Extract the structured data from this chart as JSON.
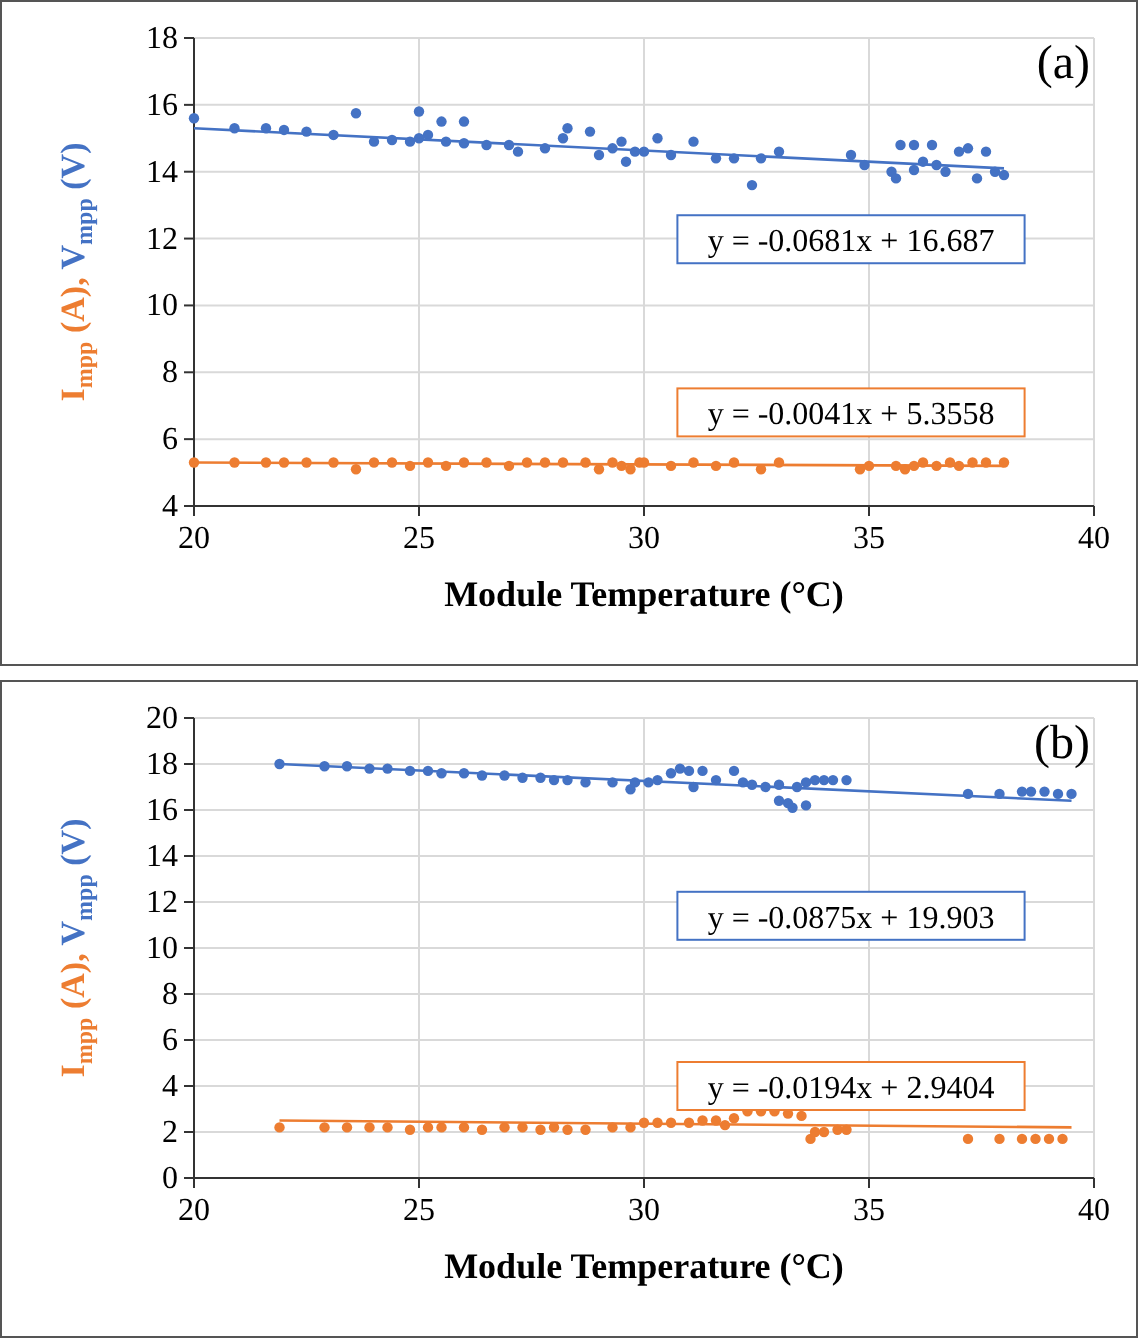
{
  "chart_data": [
    {
      "type": "scatter",
      "title": "(a)",
      "xlabel": "Module Temperature  (°C)",
      "ylabel": "I$_{mpp}$ (A), V$_{mpp}$ (V)",
      "xlim": [
        20,
        40
      ],
      "ylim": [
        4,
        18
      ],
      "xticks": [
        20,
        25,
        30,
        35,
        40
      ],
      "yticks": [
        4,
        6,
        8,
        10,
        12,
        14,
        16,
        18
      ],
      "grid": true,
      "marker": "circle",
      "annotations": [
        "y = -0.0681x + 16.687",
        "y = -0.0041x + 5.3558"
      ],
      "series": [
        {
          "type": "scatter",
          "color": "#4472c4",
          "x": [
            20,
            20.9,
            21.6,
            22,
            22.5,
            23.1,
            23.6,
            24,
            24.4,
            24.8,
            25,
            25,
            25.2,
            25.5,
            25.6,
            26,
            26,
            26.5,
            27,
            27.2,
            27.8,
            28.2,
            28.3,
            28.8,
            29,
            29.3,
            29.5,
            29.6,
            29.8,
            30,
            30.3,
            30.6,
            31.1,
            31.6,
            32,
            32.4,
            32.6,
            33,
            34.6,
            34.9,
            35.5,
            35.7,
            35.6,
            36,
            36.2,
            36.4,
            36.7,
            37,
            37.2,
            37.4,
            37.8,
            38,
            36,
            36.5,
            37.6
          ],
          "values": [
            15.6,
            15.3,
            15.3,
            15.25,
            15.2,
            15.1,
            15.75,
            14.9,
            14.95,
            14.9,
            15.8,
            15,
            15.1,
            15.5,
            14.9,
            15.5,
            14.85,
            14.8,
            14.8,
            14.6,
            14.7,
            15,
            15.3,
            15.2,
            14.5,
            14.7,
            14.9,
            14.3,
            14.6,
            14.6,
            15,
            14.5,
            14.9,
            14.4,
            14.4,
            13.6,
            14.4,
            14.6,
            14.5,
            14.2,
            14,
            14.8,
            13.8,
            14.8,
            14.3,
            14.8,
            14,
            14.6,
            14.7,
            13.8,
            14,
            13.9,
            14.05,
            14.2,
            14.6
          ]
        },
        {
          "type": "scatter",
          "color": "#ed7d31",
          "x": [
            20,
            20.9,
            21.6,
            22,
            22.5,
            23.1,
            23.6,
            24,
            24.4,
            24.8,
            25.2,
            25.6,
            26,
            26.5,
            27,
            27.4,
            27.8,
            28.2,
            28.7,
            29,
            29.3,
            29.5,
            29.7,
            29.9,
            30,
            30.6,
            31.1,
            31.6,
            32,
            32.6,
            33,
            34.8,
            35,
            35.6,
            35.8,
            36,
            36.2,
            36.5,
            36.8,
            37,
            37.3,
            37.6,
            38
          ],
          "values": [
            5.3,
            5.3,
            5.3,
            5.3,
            5.3,
            5.3,
            5.1,
            5.3,
            5.3,
            5.2,
            5.3,
            5.2,
            5.3,
            5.3,
            5.2,
            5.3,
            5.3,
            5.3,
            5.3,
            5.1,
            5.3,
            5.2,
            5.1,
            5.3,
            5.3,
            5.2,
            5.3,
            5.2,
            5.3,
            5.1,
            5.3,
            5.1,
            5.2,
            5.2,
            5.1,
            5.2,
            5.3,
            5.2,
            5.3,
            5.2,
            5.3,
            5.3,
            5.3
          ]
        },
        {
          "type": "line",
          "marker": "none",
          "color": "#4472c4",
          "x": [
            20,
            38
          ],
          "values": [
            15.3,
            14.1
          ]
        },
        {
          "type": "line",
          "marker": "none",
          "color": "#ed7d31",
          "x": [
            20,
            38
          ],
          "values": [
            5.3,
            5.2
          ]
        }
      ]
    },
    {
      "type": "scatter",
      "title": "(b)",
      "xlabel": "Module Temperature  (°C)",
      "ylabel": "I$_{mpp}$ (A), V$_{mpp}$ (V)",
      "xlim": [
        20,
        40
      ],
      "ylim": [
        0,
        20
      ],
      "xticks": [
        20,
        25,
        30,
        35,
        40
      ],
      "yticks": [
        0,
        2,
        4,
        6,
        8,
        10,
        12,
        14,
        16,
        18,
        20
      ],
      "grid": true,
      "marker": "circle",
      "annotations": [
        "y = -0.0875x + 19.903",
        "y = -0.0194x + 2.9404"
      ],
      "series": [
        {
          "type": "scatter",
          "color": "#4472c4",
          "x": [
            21.9,
            22.9,
            23.4,
            23.9,
            24.3,
            24.8,
            25.2,
            25.5,
            26,
            26.4,
            26.9,
            27.3,
            27.7,
            28,
            28.3,
            28.7,
            29.3,
            29.7,
            29.8,
            30.1,
            30.3,
            30.6,
            30.8,
            31,
            31.1,
            31.3,
            31.6,
            32,
            32.2,
            32.4,
            32.7,
            33,
            33.2,
            33.4,
            33.6,
            33.8,
            34,
            34.2,
            34.5,
            33,
            33.3,
            33.6,
            37.2,
            37.9,
            38.4,
            38.6,
            38.9,
            39.2,
            39.5
          ],
          "values": [
            18,
            17.9,
            17.9,
            17.8,
            17.8,
            17.7,
            17.7,
            17.6,
            17.6,
            17.5,
            17.5,
            17.4,
            17.4,
            17.3,
            17.3,
            17.2,
            17.2,
            16.9,
            17.2,
            17.2,
            17.3,
            17.6,
            17.8,
            17.7,
            17,
            17.7,
            17.3,
            17.7,
            17.2,
            17.1,
            17,
            17.1,
            16.3,
            17,
            17.2,
            17.3,
            17.3,
            17.3,
            17.3,
            16.4,
            16.1,
            16.2,
            16.7,
            16.7,
            16.8,
            16.8,
            16.8,
            16.7,
            16.7
          ]
        },
        {
          "type": "scatter",
          "color": "#ed7d31",
          "x": [
            21.9,
            22.9,
            23.4,
            23.9,
            24.3,
            24.8,
            25.2,
            25.5,
            26,
            26.4,
            26.9,
            27.3,
            27.7,
            28,
            28.3,
            28.7,
            29.3,
            29.7,
            30,
            30.3,
            30.6,
            31,
            31.3,
            31.6,
            31.8,
            32,
            32.3,
            32.6,
            32.9,
            33.2,
            33.5,
            33.7,
            33.8,
            34,
            34.3,
            34.5,
            37.2,
            37.9,
            38.4,
            38.7,
            39,
            39.3
          ],
          "values": [
            2.2,
            2.2,
            2.2,
            2.2,
            2.2,
            2.1,
            2.2,
            2.2,
            2.2,
            2.1,
            2.2,
            2.2,
            2.1,
            2.2,
            2.1,
            2.1,
            2.2,
            2.2,
            2.4,
            2.4,
            2.4,
            2.4,
            2.5,
            2.5,
            2.3,
            2.6,
            2.9,
            2.9,
            2.9,
            2.8,
            2.7,
            1.7,
            2.0,
            2.0,
            2.1,
            2.1,
            1.7,
            1.7,
            1.7,
            1.7,
            1.7,
            1.7
          ]
        },
        {
          "type": "line",
          "marker": "none",
          "color": "#4472c4",
          "x": [
            21.9,
            39.5
          ],
          "values": [
            18.0,
            16.4
          ]
        },
        {
          "type": "line",
          "marker": "none",
          "color": "#ed7d31",
          "x": [
            21.9,
            39.5
          ],
          "values": [
            2.5,
            2.2
          ]
        }
      ]
    }
  ]
}
